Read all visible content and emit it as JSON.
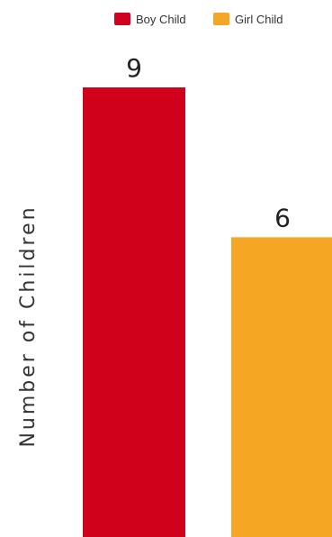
{
  "chart_data": {
    "type": "bar",
    "categories": [
      "Boy Child",
      "Girl Child"
    ],
    "values": [
      9,
      6
    ],
    "colors": [
      "#d0021b",
      "#f5a623"
    ],
    "ylabel": "Number of Children",
    "ylim": [
      0,
      9
    ],
    "grid": false,
    "legend": {
      "position": "top-right",
      "entries": [
        "Boy Child",
        "Girl Child"
      ]
    }
  }
}
